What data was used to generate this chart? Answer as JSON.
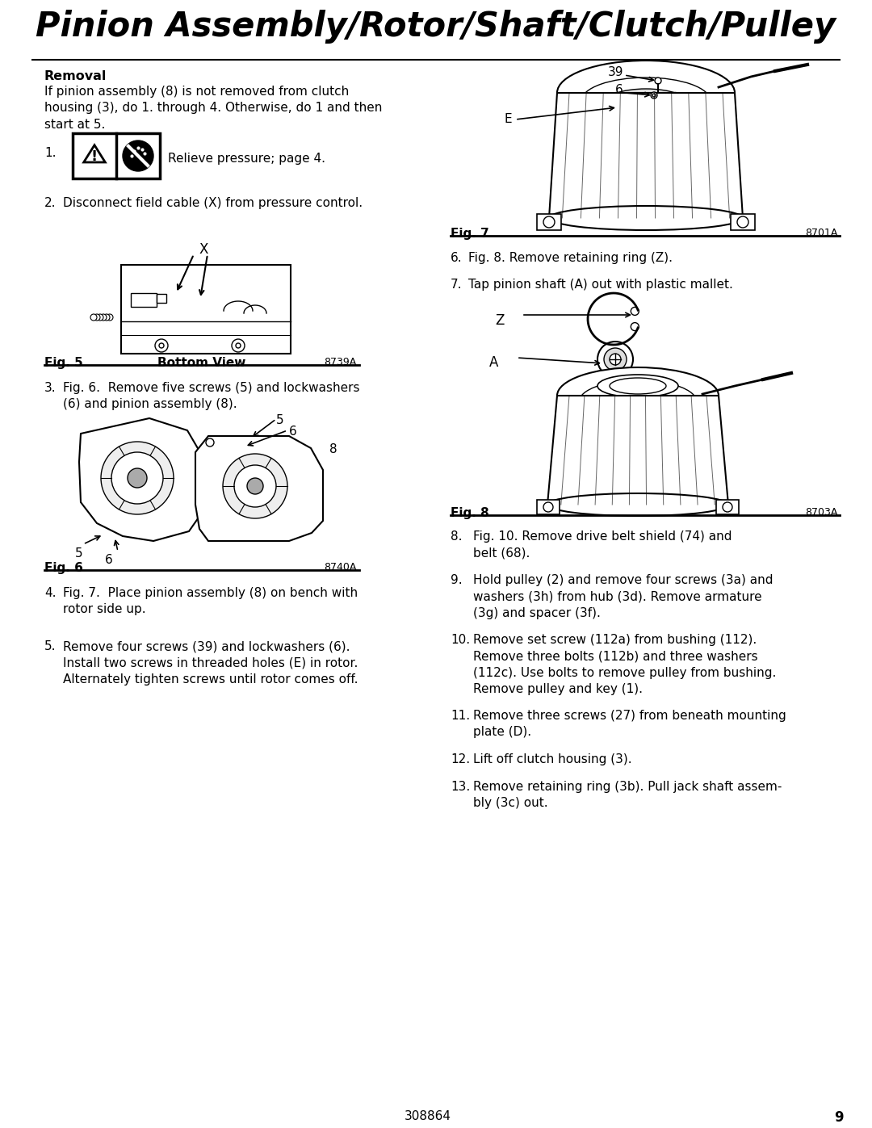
{
  "title": "Pinion Assembly/Rotor/Shaft/Clutch/Pulley",
  "background_color": "#ffffff",
  "section_header": "Removal",
  "intro_text": "If pinion assembly (8) is not removed from clutch\nhousing (3), do 1. through 4. Otherwise, do 1 and then\nstart at 5.",
  "step1_text": "Relieve pressure; page 4.",
  "step2_text": "Disconnect field cable (X) from pressure control.",
  "fig5_label": "Fig. 5",
  "fig5_caption": "Bottom View",
  "fig5_code": "8739A",
  "step3_text": "Fig. 6.  Remove five screws (5) and lockwashers\n(6) and pinion assembly (8).",
  "fig6_label": "Fig. 6",
  "fig6_code": "8740A",
  "step4_text": "Fig. 7.  Place pinion assembly (8) on bench with\nrotor side up.",
  "step5_text": "Remove four screws (39) and lockwashers (6).\nInstall two screws in threaded holes (E) in rotor.\nAlternately tighten screws until rotor comes off.",
  "fig7_label": "Fig. 7",
  "fig7_code": "8701A",
  "step6_text": "Fig. 8. Remove retaining ring (Z).",
  "step7_text": "Tap pinion shaft (A) out with plastic mallet.",
  "fig8_label": "Fig. 8",
  "fig8_code": "8703A",
  "step8_text": "Fig. 10. Remove drive belt shield (74) and\nbelt (68).",
  "step9_text": "Hold pulley (2) and remove four screws (3a) and\nwashers (3h) from hub (3d). Remove armature\n(3g) and spacer (3f).",
  "step10_text": "Remove set screw (112a) from bushing (112).\nRemove three bolts (112b) and three washers\n(112c). Use bolts to remove pulley from bushing.\nRemove pulley and key (1).",
  "step11_text": "Remove three screws (27) from beneath mounting\nplate (D).",
  "step12_text": "Lift off clutch housing (3).",
  "step13_text": "Remove retaining ring (3b). Pull jack shaft assem-\nbly (3c) out.",
  "page_num": "308864",
  "page_num2": "9"
}
